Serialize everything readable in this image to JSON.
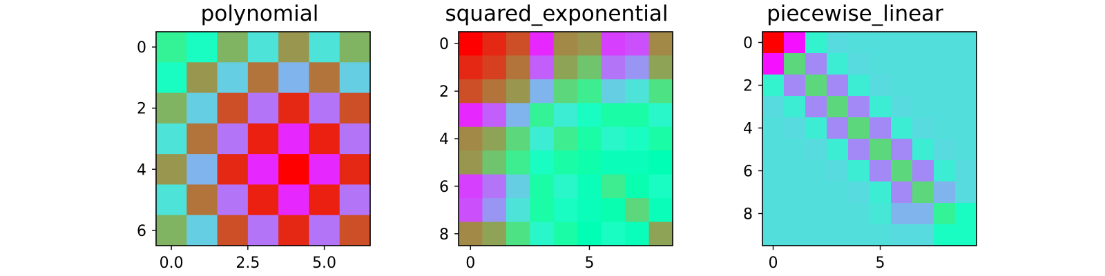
{
  "chart_data": [
    {
      "type": "heatmap",
      "title": "polynomial",
      "colormap": "rainbow",
      "rows": 7,
      "cols": 7,
      "xticks": [
        0.0,
        2.5,
        5.0
      ],
      "xtick_labels": [
        "0.0",
        "2.5",
        "5.0"
      ],
      "yticks": [
        0,
        2,
        4,
        6
      ],
      "ytick_labels": [
        "0",
        "2",
        "4",
        "6"
      ],
      "values": [
        [
          0.6,
          0.45,
          0.75,
          0.35,
          0.8,
          0.35,
          0.75
        ],
        [
          0.45,
          0.8,
          0.3,
          0.85,
          0.25,
          0.85,
          0.3
        ],
        [
          0.75,
          0.3,
          0.9,
          0.15,
          0.95,
          0.15,
          0.9
        ],
        [
          0.35,
          0.85,
          0.15,
          0.96,
          0.05,
          0.96,
          0.15
        ],
        [
          0.8,
          0.25,
          0.95,
          0.05,
          1.0,
          0.05,
          0.95
        ],
        [
          0.35,
          0.85,
          0.15,
          0.96,
          0.05,
          0.96,
          0.15
        ],
        [
          0.75,
          0.3,
          0.9,
          0.15,
          0.95,
          0.15,
          0.9
        ]
      ]
    },
    {
      "type": "heatmap",
      "title": "squared_exponential",
      "colormap": "rainbow",
      "rows": 9,
      "cols": 9,
      "xticks": [
        0,
        5
      ],
      "xtick_labels": [
        "0",
        "5"
      ],
      "yticks": [
        0,
        2,
        4,
        6,
        8
      ],
      "ytick_labels": [
        "0",
        "2",
        "4",
        "6",
        "8"
      ],
      "values": [
        [
          1.0,
          0.95,
          0.9,
          0.05,
          0.82,
          0.8,
          0.08,
          0.1,
          0.82
        ],
        [
          0.95,
          0.92,
          0.85,
          0.12,
          0.78,
          0.72,
          0.15,
          0.2,
          0.78
        ],
        [
          0.9,
          0.85,
          0.8,
          0.25,
          0.68,
          0.62,
          0.3,
          0.35,
          0.65
        ],
        [
          0.05,
          0.12,
          0.25,
          0.6,
          0.38,
          0.45,
          0.55,
          0.55,
          0.42
        ],
        [
          0.82,
          0.78,
          0.68,
          0.38,
          0.62,
          0.55,
          0.42,
          0.45,
          0.55
        ],
        [
          0.8,
          0.72,
          0.62,
          0.45,
          0.55,
          0.53,
          0.48,
          0.48,
          0.5
        ],
        [
          0.08,
          0.15,
          0.3,
          0.55,
          0.42,
          0.48,
          0.62,
          0.52,
          0.45
        ],
        [
          0.1,
          0.2,
          0.35,
          0.55,
          0.45,
          0.48,
          0.52,
          0.68,
          0.48
        ],
        [
          0.82,
          0.78,
          0.65,
          0.42,
          0.55,
          0.5,
          0.45,
          0.48,
          0.78
        ]
      ]
    },
    {
      "type": "heatmap",
      "title": "piecewise_linear",
      "colormap": "rainbow",
      "rows": 10,
      "cols": 10,
      "xticks": [
        0,
        5
      ],
      "xtick_labels": [
        "0",
        "5"
      ],
      "yticks": [
        0,
        2,
        4,
        6,
        8
      ],
      "ytick_labels": [
        "0",
        "2",
        "4",
        "6",
        "8"
      ],
      "values": [
        [
          1.0,
          0.02,
          0.4,
          0.33,
          0.34,
          0.34,
          0.34,
          0.34,
          0.34,
          0.34
        ],
        [
          0.02,
          0.68,
          0.18,
          0.38,
          0.33,
          0.34,
          0.34,
          0.34,
          0.34,
          0.34
        ],
        [
          0.4,
          0.18,
          0.68,
          0.18,
          0.38,
          0.33,
          0.34,
          0.34,
          0.34,
          0.34
        ],
        [
          0.33,
          0.38,
          0.18,
          0.68,
          0.18,
          0.38,
          0.33,
          0.34,
          0.34,
          0.34
        ],
        [
          0.34,
          0.33,
          0.38,
          0.18,
          0.68,
          0.18,
          0.38,
          0.33,
          0.34,
          0.34
        ],
        [
          0.34,
          0.34,
          0.33,
          0.38,
          0.18,
          0.68,
          0.18,
          0.38,
          0.33,
          0.34
        ],
        [
          0.34,
          0.34,
          0.34,
          0.33,
          0.38,
          0.18,
          0.68,
          0.18,
          0.38,
          0.33
        ],
        [
          0.34,
          0.34,
          0.34,
          0.34,
          0.33,
          0.38,
          0.18,
          0.68,
          0.25,
          0.33
        ],
        [
          0.34,
          0.34,
          0.34,
          0.34,
          0.34,
          0.36,
          0.25,
          0.25,
          0.6,
          0.45
        ],
        [
          0.34,
          0.34,
          0.34,
          0.34,
          0.34,
          0.34,
          0.33,
          0.33,
          0.45,
          0.45
        ]
      ]
    }
  ]
}
